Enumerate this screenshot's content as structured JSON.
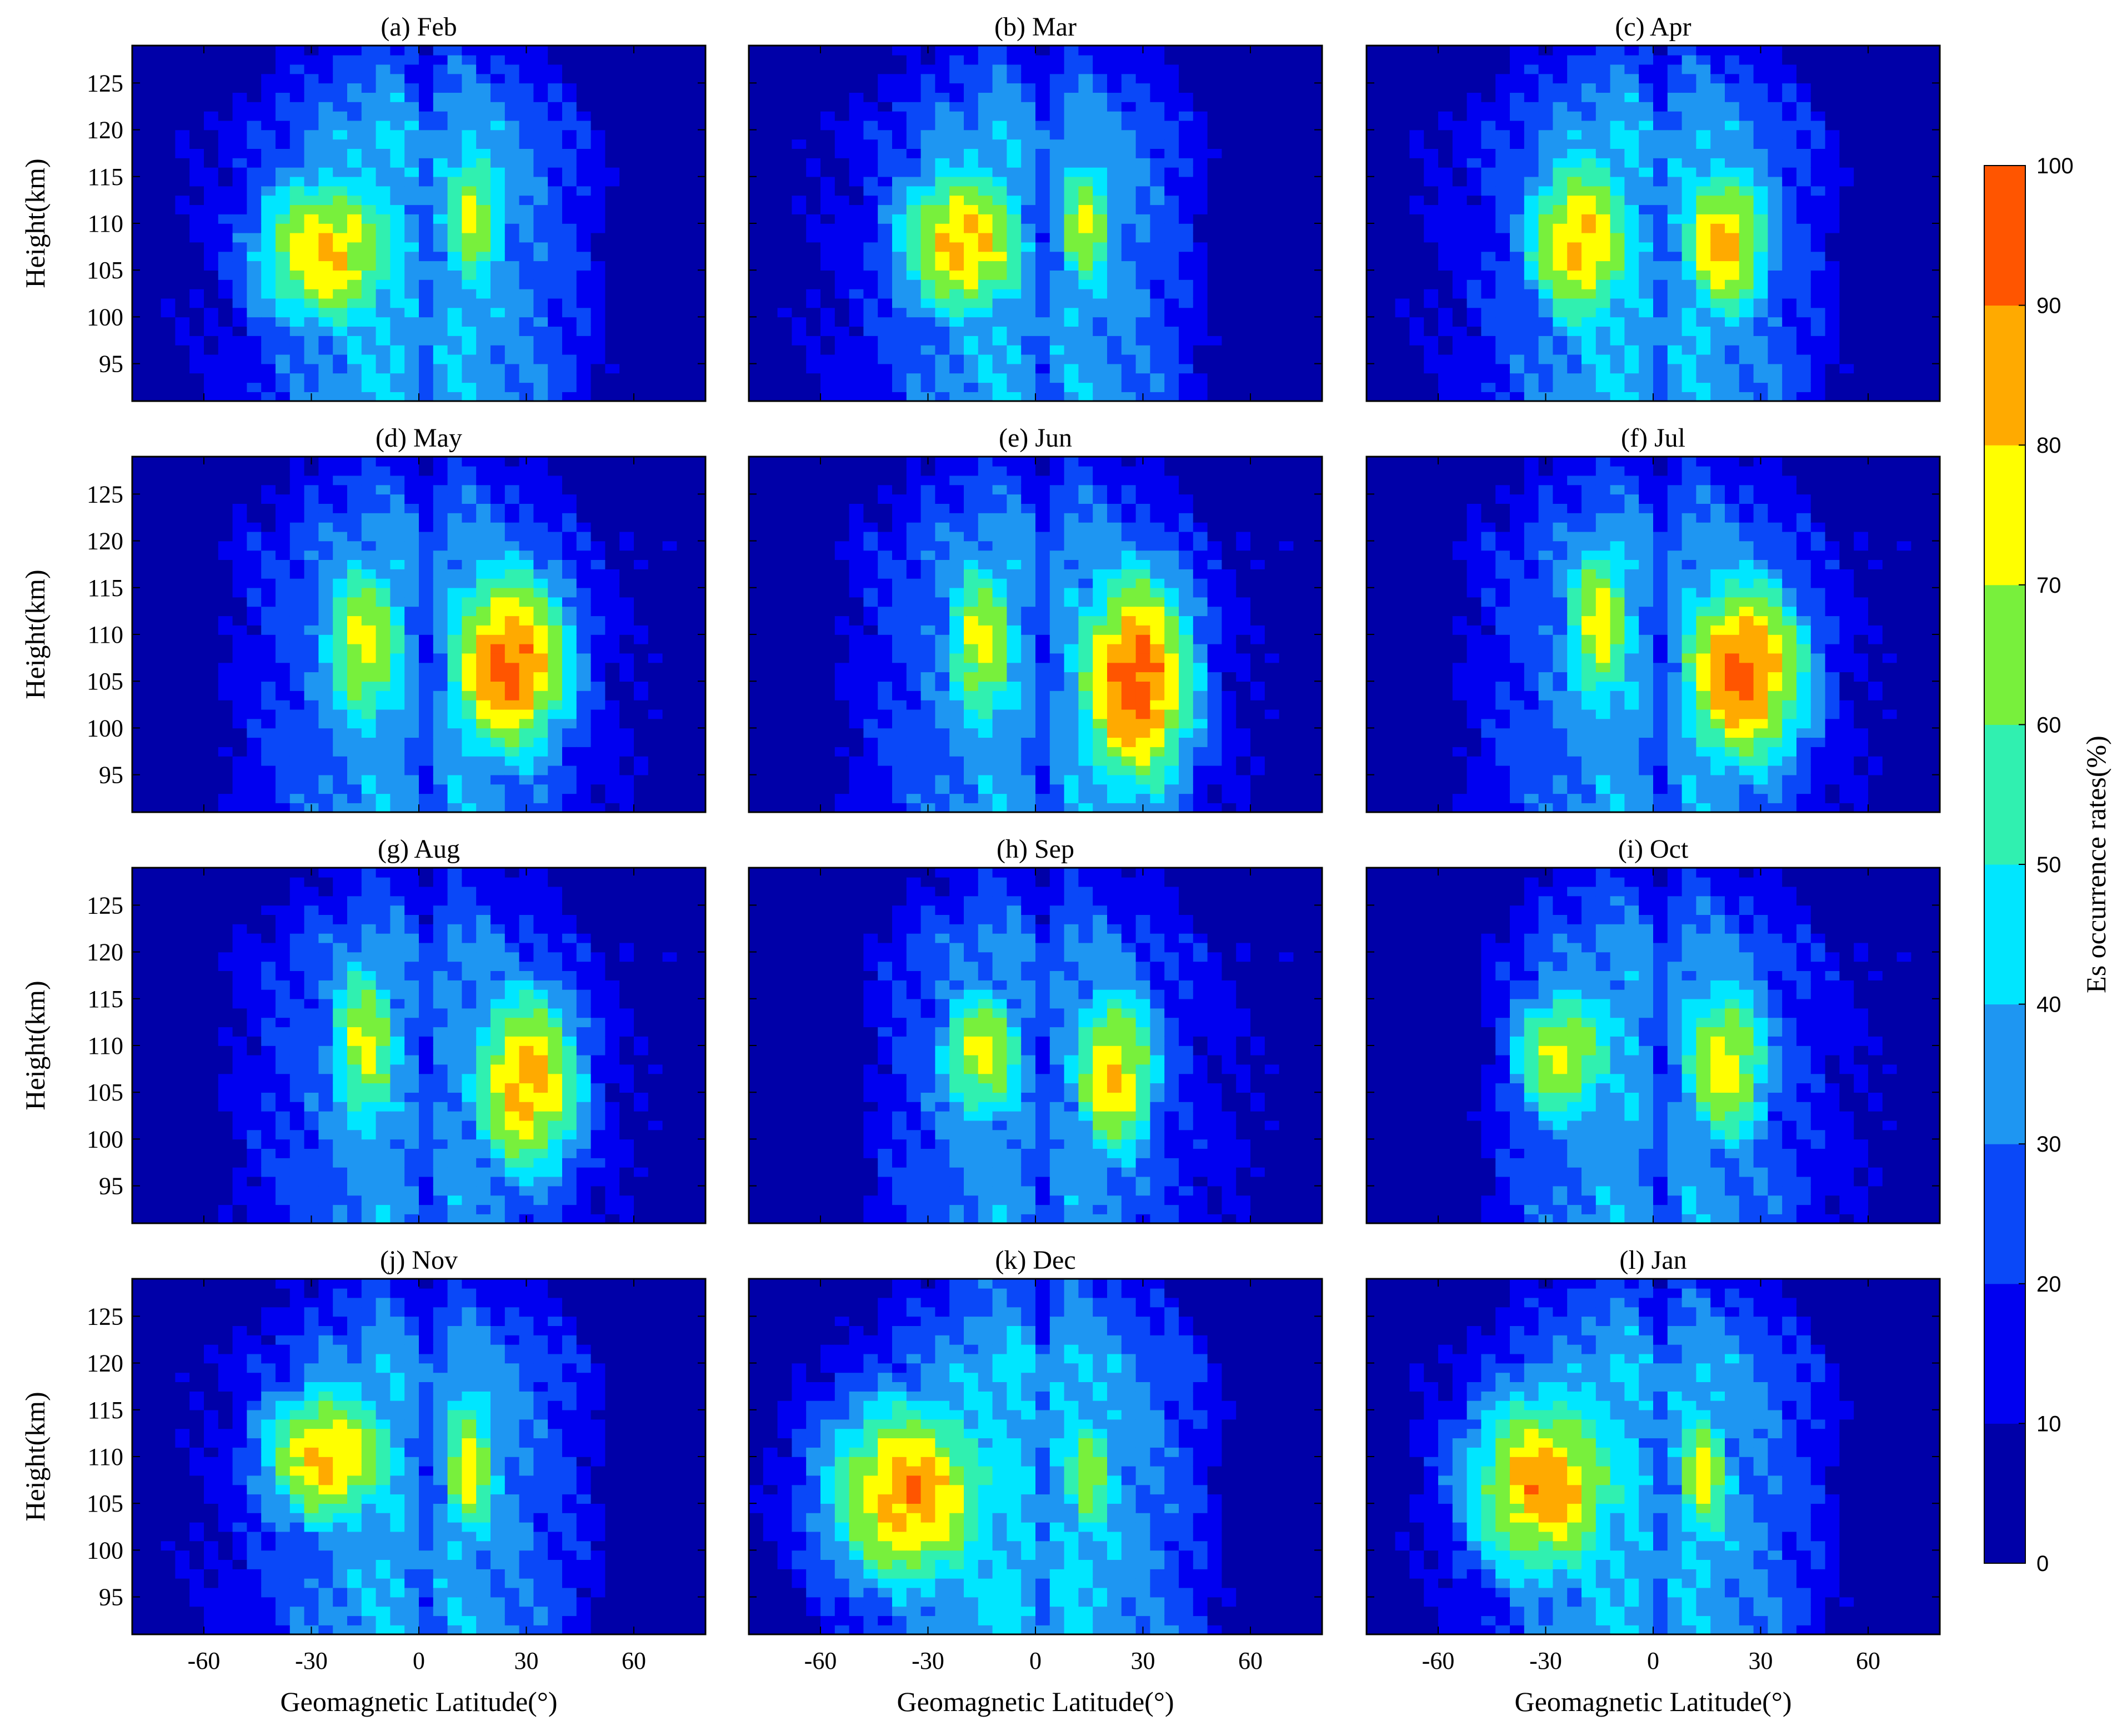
{
  "figure": {
    "y_axis_label": "Height(km)",
    "x_axis_label": "Geomagnetic Latitude(°)",
    "colorbar_label": "Es occurrence rates(%)"
  },
  "chart_data": {
    "type": "heatmap",
    "subtype": "filled-contour small multiples",
    "xlabel": "Geomagnetic Latitude(°)",
    "ylabel": "Height(km)",
    "xlim": [
      -80,
      80
    ],
    "ylim": [
      91,
      129
    ],
    "xticks": [
      -60,
      -30,
      0,
      30,
      60
    ],
    "yticks": [
      95,
      100,
      105,
      110,
      115,
      120,
      125
    ],
    "colorbar": {
      "label": "Es occurrence rates(%)",
      "range": [
        0,
        100
      ],
      "ticks": [
        0,
        10,
        20,
        30,
        40,
        50,
        60,
        70,
        80,
        90,
        100
      ],
      "levels": [
        0,
        10,
        20,
        30,
        40,
        50,
        60,
        70,
        80,
        90,
        100
      ],
      "colors": [
        "#0000a8",
        "#0000f0",
        "#0a48f8",
        "#1e96f2",
        "#00e6ff",
        "#30f0b0",
        "#78f03c",
        "#ffff00",
        "#ffaa00",
        "#ff5500"
      ]
    },
    "panels": [
      {
        "title": "(a) Feb",
        "summary": "southern peak ~80-90% near -25°, 107 km; northern peak ~70-80% near 15°, 110 km; minimum 10-20% near 60-70°"
      },
      {
        "title": "(b) Mar",
        "summary": "southern peak ~80-90% near -20°, 108 km; northern peak ~70% near 15°, 110 km; broad minimum 10-20% at 50-70°"
      },
      {
        "title": "(c) Apr",
        "summary": "two nearly symmetric peaks ~80-90% near -20° and 20°, 108 km"
      },
      {
        "title": "(d) May",
        "summary": "northern peak 90-100% near 25°, 107 km; southern peak ~70-80% near -15°"
      },
      {
        "title": "(e) Jun",
        "summary": "strong northern peak 90-100% near 28°, 105 km; southern peak ~70-80% near -15°"
      },
      {
        "title": "(f) Jul",
        "summary": "northern peak 90-100% near 25°, 107 km; southern peak ~70-80% near -15°"
      },
      {
        "title": "(g) Aug",
        "summary": "northern peak ~80-90% near 30°, 107 km; southern peak ~70-80% near -15°"
      },
      {
        "title": "(h) Sep",
        "summary": "peaks ~70-80% near -15° and 20°, northern local max ~80-90% near 25°, 107 km"
      },
      {
        "title": "(i) Oct",
        "summary": "peaks ~70-80% near -25° and 20°, 108 km"
      },
      {
        "title": "(j) Nov",
        "summary": "southern peak ~80-90% near -25°, 109 km; northern ~70-80% near 15°"
      },
      {
        "title": "(k) Dec",
        "summary": "broad southern peak 80-90% near -35°, 106 km; northern ~60-70% near 15°"
      },
      {
        "title": "(l) Jan",
        "summary": "broad southern peak 80-90% near -30°, 107 km; northern ~70-80% near 15°"
      }
    ]
  }
}
